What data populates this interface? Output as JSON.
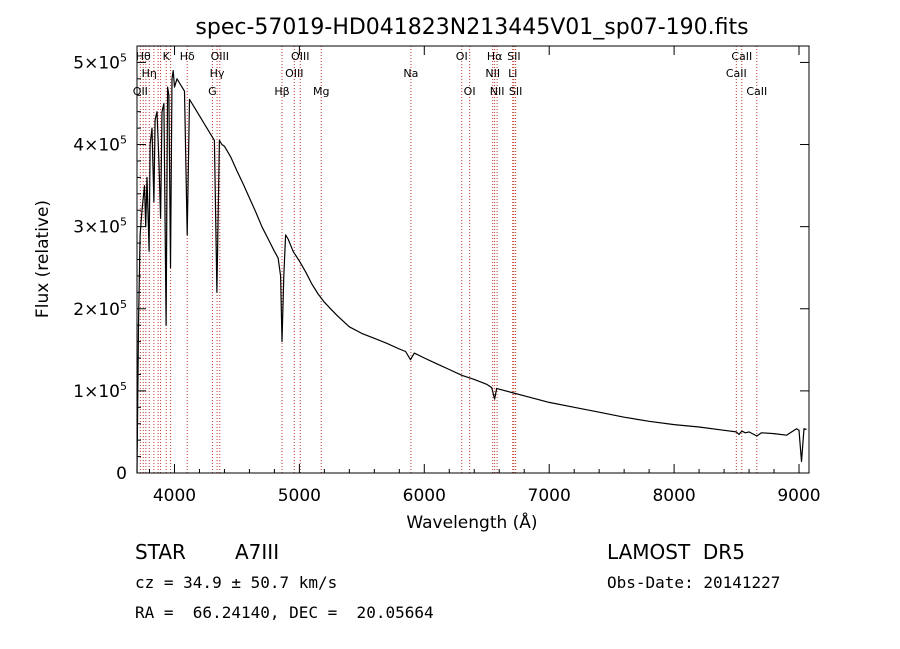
{
  "chart_data": {
    "type": "line",
    "title": "spec-57019-HD041823N213445V01_sp07-190.fits",
    "xlabel": "Wavelength (Å)",
    "ylabel": "Flux (relative)",
    "xlim": [
      3700,
      9080
    ],
    "ylim": [
      0,
      520000
    ],
    "x_ticks": [
      {
        "value": 4000,
        "label": "4000"
      },
      {
        "value": 5000,
        "label": "5000"
      },
      {
        "value": 6000,
        "label": "6000"
      },
      {
        "value": 7000,
        "label": "7000"
      },
      {
        "value": 8000,
        "label": "8000"
      },
      {
        "value": 9000,
        "label": "9000"
      }
    ],
    "y_ticks": [
      {
        "value": 0,
        "mantissa": "0",
        "exp": ""
      },
      {
        "value": 100000,
        "mantissa": "1×10",
        "exp": "5"
      },
      {
        "value": 200000,
        "mantissa": "2×10",
        "exp": "5"
      },
      {
        "value": 300000,
        "mantissa": "3×10",
        "exp": "5"
      },
      {
        "value": 400000,
        "mantissa": "4×10",
        "exp": "5"
      },
      {
        "value": 500000,
        "mantissa": "5×10",
        "exp": "5"
      }
    ],
    "grid": false,
    "series": [
      {
        "color": "#000000",
        "x": [
          3700,
          3712,
          3725,
          3740,
          3760,
          3770,
          3780,
          3797,
          3805,
          3820,
          3835,
          3845,
          3860,
          3875,
          3889,
          3900,
          3915,
          3933,
          3945,
          3955,
          3968,
          3980,
          3990,
          4000,
          4020,
          4040,
          4060,
          4080,
          4102,
          4120,
          4140,
          4160,
          4180,
          4200,
          4220,
          4240,
          4260,
          4280,
          4300,
          4320,
          4340,
          4360,
          4380,
          4400,
          4450,
          4500,
          4550,
          4600,
          4650,
          4700,
          4750,
          4800,
          4830,
          4850,
          4861,
          4875,
          4890,
          4910,
          4950,
          5000,
          5050,
          5100,
          5150,
          5200,
          5250,
          5300,
          5400,
          5500,
          5600,
          5700,
          5800,
          5850,
          5890,
          5920,
          6000,
          6100,
          6200,
          6300,
          6400,
          6500,
          6540,
          6563,
          6580,
          6600,
          6700,
          6800,
          7000,
          7200,
          7400,
          7600,
          7800,
          8000,
          8200,
          8400,
          8498,
          8520,
          8542,
          8570,
          8600,
          8662,
          8700,
          8800,
          8900,
          8980,
          9000,
          9020,
          9040,
          9060
        ],
        "y": [
          0,
          180000,
          290000,
          320000,
          350000,
          300000,
          360000,
          270000,
          400000,
          420000,
          330000,
          430000,
          440000,
          380000,
          310000,
          440000,
          450000,
          180000,
          470000,
          460000,
          250000,
          480000,
          490000,
          470000,
          480000,
          475000,
          470000,
          465000,
          290000,
          455000,
          450000,
          445000,
          440000,
          435000,
          430000,
          425000,
          420000,
          415000,
          410000,
          405000,
          220000,
          405000,
          400000,
          398000,
          385000,
          368000,
          352000,
          335000,
          318000,
          300000,
          285000,
          270000,
          262000,
          240000,
          160000,
          240000,
          290000,
          285000,
          270000,
          258000,
          245000,
          230000,
          218000,
          208000,
          200000,
          192000,
          178000,
          170000,
          164000,
          158000,
          151000,
          148000,
          138000,
          146000,
          140000,
          133000,
          126000,
          119000,
          114000,
          108000,
          104000,
          90000,
          103000,
          102000,
          98000,
          94000,
          86000,
          80000,
          74000,
          68000,
          63000,
          59000,
          56000,
          52000,
          50000,
          47000,
          51000,
          49000,
          50000,
          45000,
          49000,
          48000,
          46000,
          54000,
          52000,
          14000,
          54000,
          53000
        ]
      }
    ],
    "spectral_lines": [
      {
        "wavelength": 3727,
        "label": "OII",
        "row": 3
      },
      {
        "wavelength": 3750,
        "label": "Hθ",
        "row": 1
      },
      {
        "wavelength": 3771,
        "label": "",
        "row": 0
      },
      {
        "wavelength": 3798,
        "label": "Hη",
        "row": 2
      },
      {
        "wavelength": 3835,
        "label": "",
        "row": 0
      },
      {
        "wavelength": 3869,
        "label": "",
        "row": 0
      },
      {
        "wavelength": 3889,
        "label": "",
        "row": 0
      },
      {
        "wavelength": 3934,
        "label": "K",
        "row": 1
      },
      {
        "wavelength": 3969,
        "label": "",
        "row": 0
      },
      {
        "wavelength": 4102,
        "label": "Hδ",
        "row": 1
      },
      {
        "wavelength": 4304,
        "label": "G",
        "row": 3
      },
      {
        "wavelength": 4341,
        "label": "Hγ",
        "row": 2
      },
      {
        "wavelength": 4363,
        "label": "OIII",
        "row": 1
      },
      {
        "wavelength": 4861,
        "label": "Hβ",
        "row": 3
      },
      {
        "wavelength": 4959,
        "label": "OIII",
        "row": 2
      },
      {
        "wavelength": 5007,
        "label": "OIII",
        "row": 1
      },
      {
        "wavelength": 5175,
        "label": "Mg",
        "row": 3
      },
      {
        "wavelength": 5893,
        "label": "Na",
        "row": 2
      },
      {
        "wavelength": 6300,
        "label": "OI",
        "row": 1
      },
      {
        "wavelength": 6363,
        "label": "OI",
        "row": 3
      },
      {
        "wavelength": 6548,
        "label": "NII",
        "row": 2
      },
      {
        "wavelength": 6563,
        "label": "Hα",
        "row": 1
      },
      {
        "wavelength": 6583,
        "label": "NII",
        "row": 3
      },
      {
        "wavelength": 6708,
        "label": "Li",
        "row": 2
      },
      {
        "wavelength": 6717,
        "label": "SII",
        "row": 1
      },
      {
        "wavelength": 6731,
        "label": "SII",
        "row": 3
      },
      {
        "wavelength": 8498,
        "label": "CaII",
        "row": 2
      },
      {
        "wavelength": 8542,
        "label": "CaII",
        "row": 1
      },
      {
        "wavelength": 8662,
        "label": "CaII",
        "row": 3
      }
    ]
  },
  "info": {
    "object_class": "STAR",
    "subclass": "A7III",
    "survey": "LAMOST  DR5",
    "redshift": "cz = 34.9 ± 50.7 km/s",
    "obs_date": "Obs-Date: 20141227",
    "coords": "RA =  66.24140, DEC =  20.05664"
  }
}
